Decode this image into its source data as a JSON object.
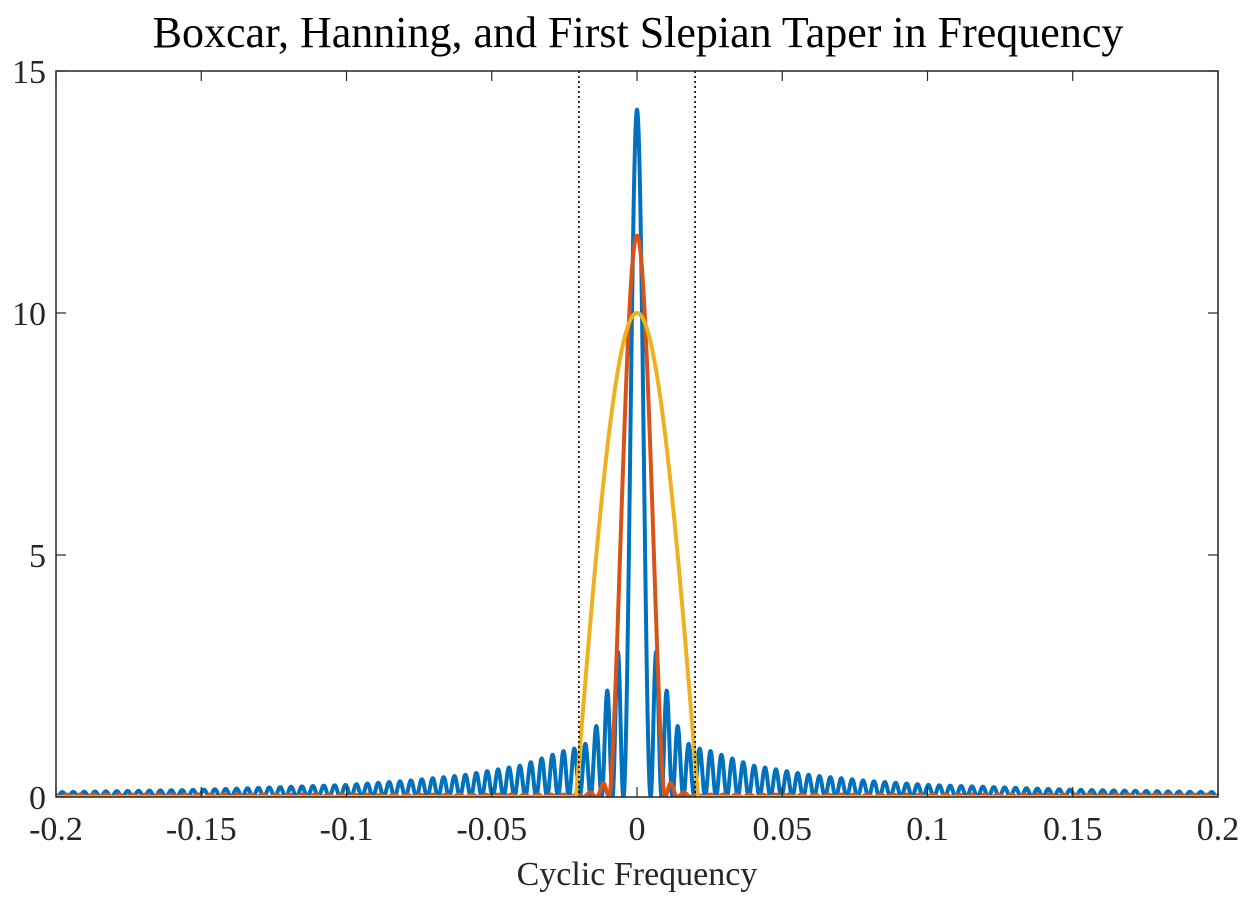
{
  "chart_data": {
    "type": "line",
    "title": "Boxcar, Hanning, and First Slepian Taper in Frequency",
    "xlabel": "Cyclic Frequency",
    "ylabel": "",
    "xlim": [
      -0.2,
      0.2
    ],
    "ylim": [
      0,
      15
    ],
    "xticks": [
      -0.2,
      -0.15,
      -0.1,
      -0.05,
      0,
      0.05,
      0.1,
      0.15,
      0.2
    ],
    "xtick_labels": [
      "-0.2",
      "-0.15",
      "-0.1",
      "-0.05",
      "0",
      "0.05",
      "0.1",
      "0.15",
      "0.2"
    ],
    "yticks": [
      0,
      5,
      10,
      15
    ],
    "ytick_labels": [
      "0",
      "5",
      "10",
      "15"
    ],
    "grid": false,
    "legend": "none",
    "reference_lines_x": [
      -0.02,
      0.02
    ],
    "reference_line_color": "#000000",
    "series": [
      {
        "color": "#0072BD",
        "peak": 14.2,
        "main_lobe_zero": 0.0047,
        "sidelobe_x": [
          0.0078,
          0.0115,
          0.0153,
          0.019,
          0.0228,
          0.04,
          0.06,
          0.08,
          0.1,
          0.15,
          0.2
        ],
        "sidelobe_y": [
          3.0,
          1.8,
          1.3,
          1.0,
          1.0,
          0.65,
          0.45,
          0.33,
          0.25,
          0.15,
          0.1
        ]
      },
      {
        "color": "#D95319",
        "peak": 11.6,
        "main_lobe_zero": 0.0095,
        "sidelobe_x": [
          0.0115,
          0.014,
          0.02
        ],
        "sidelobe_y": [
          0.3,
          0.12,
          0.05
        ]
      },
      {
        "color": "#EDB120",
        "peak": 10.0,
        "main_lobe_zero": 0.021,
        "sidelobe_x": [],
        "sidelobe_y": []
      }
    ]
  }
}
